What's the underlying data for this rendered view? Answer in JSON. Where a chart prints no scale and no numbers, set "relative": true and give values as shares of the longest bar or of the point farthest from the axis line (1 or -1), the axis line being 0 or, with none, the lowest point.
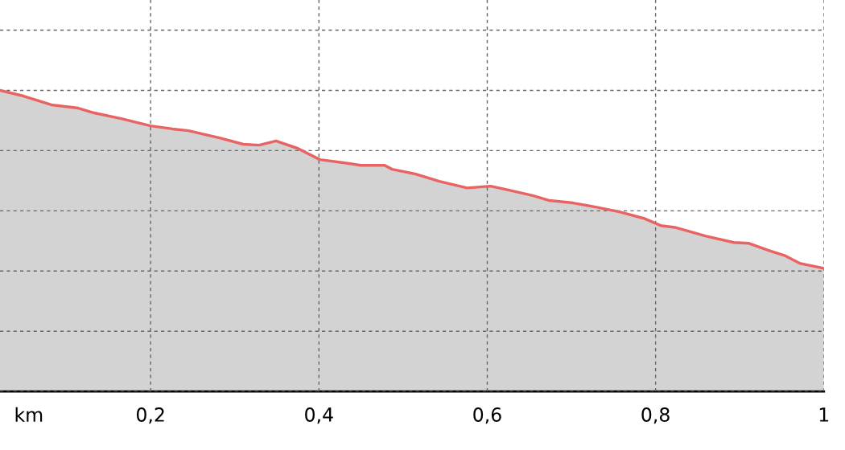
{
  "chart_data": {
    "type": "area",
    "relative": true,
    "xlabel": "km",
    "x": [
      0.021,
      0.049,
      0.082,
      0.114,
      0.133,
      0.165,
      0.2,
      0.226,
      0.245,
      0.282,
      0.31,
      0.329,
      0.349,
      0.375,
      0.401,
      0.431,
      0.45,
      0.478,
      0.487,
      0.515,
      0.543,
      0.576,
      0.604,
      0.627,
      0.655,
      0.674,
      0.702,
      0.73,
      0.758,
      0.786,
      0.806,
      0.823,
      0.86,
      0.893,
      0.911,
      0.935,
      0.953,
      0.972,
      1.0
    ],
    "series": [
      {
        "color": "#e86464",
        "values": [
          1.0,
          0.981,
          0.952,
          0.941,
          0.925,
          0.906,
          0.882,
          0.872,
          0.866,
          0.842,
          0.821,
          0.818,
          0.832,
          0.807,
          0.77,
          0.759,
          0.751,
          0.751,
          0.738,
          0.722,
          0.698,
          0.676,
          0.682,
          0.668,
          0.65,
          0.634,
          0.626,
          0.612,
          0.596,
          0.575,
          0.551,
          0.545,
          0.516,
          0.495,
          0.492,
          0.468,
          0.452,
          0.425,
          0.409
        ]
      }
    ],
    "xlim": [
      0.021,
      1.0
    ],
    "xticks": [
      {
        "value": 0.2,
        "label": "0,2"
      },
      {
        "value": 0.4,
        "label": "0,4"
      },
      {
        "value": 0.6,
        "label": "0,6"
      },
      {
        "value": 0.8,
        "label": "0,8"
      },
      1
    ],
    "grid": true,
    "line_style": "solid",
    "marker": "none"
  }
}
